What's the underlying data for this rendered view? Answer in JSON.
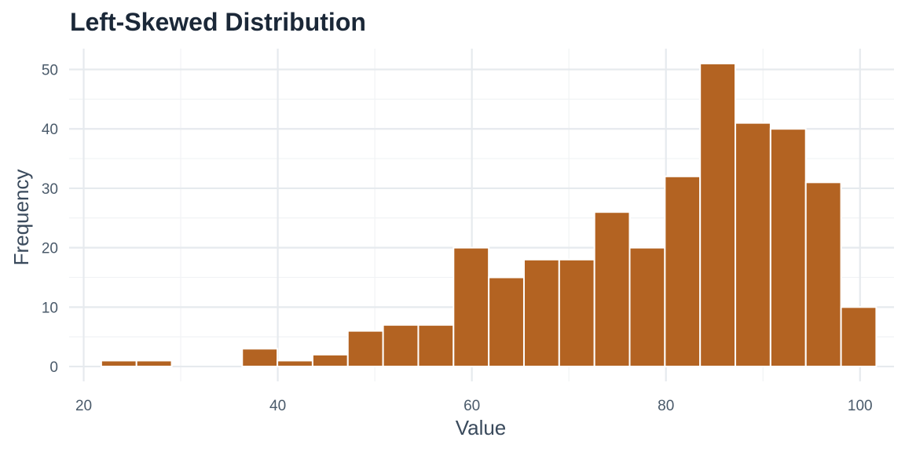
{
  "chart_data": {
    "type": "bar",
    "title": "Left-Skewed Distribution",
    "xlabel": "Value",
    "ylabel": "Frequency",
    "xlim": [
      18.5,
      103.5
    ],
    "ylim": [
      -2.5,
      53.5
    ],
    "x_ticks": [
      20,
      40,
      60,
      80,
      100
    ],
    "y_ticks": [
      0,
      10,
      20,
      30,
      40,
      50
    ],
    "bin_width": 3.63,
    "bins": [
      {
        "start": 21.81,
        "end": 25.44,
        "count": 1
      },
      {
        "start": 25.44,
        "end": 29.07,
        "count": 1
      },
      {
        "start": 29.07,
        "end": 32.7,
        "count": 0
      },
      {
        "start": 32.7,
        "end": 36.33,
        "count": 0
      },
      {
        "start": 36.33,
        "end": 39.96,
        "count": 3
      },
      {
        "start": 39.96,
        "end": 43.59,
        "count": 1
      },
      {
        "start": 43.59,
        "end": 47.22,
        "count": 2
      },
      {
        "start": 47.22,
        "end": 50.85,
        "count": 6
      },
      {
        "start": 50.85,
        "end": 54.48,
        "count": 7
      },
      {
        "start": 54.48,
        "end": 58.11,
        "count": 7
      },
      {
        "start": 58.11,
        "end": 61.74,
        "count": 20
      },
      {
        "start": 61.74,
        "end": 65.37,
        "count": 15
      },
      {
        "start": 65.37,
        "end": 69.0,
        "count": 18
      },
      {
        "start": 69.0,
        "end": 72.63,
        "count": 18
      },
      {
        "start": 72.63,
        "end": 76.26,
        "count": 26
      },
      {
        "start": 76.26,
        "end": 79.89,
        "count": 20
      },
      {
        "start": 79.89,
        "end": 83.52,
        "count": 32
      },
      {
        "start": 83.52,
        "end": 87.15,
        "count": 51
      },
      {
        "start": 87.15,
        "end": 90.78,
        "count": 41
      },
      {
        "start": 90.78,
        "end": 94.41,
        "count": 40
      },
      {
        "start": 94.41,
        "end": 98.04,
        "count": 31
      },
      {
        "start": 98.04,
        "end": 101.67,
        "count": 10
      }
    ],
    "bar_color": "#b36322",
    "bar_outline": "#ffffff",
    "grid": true,
    "legend": "none"
  }
}
